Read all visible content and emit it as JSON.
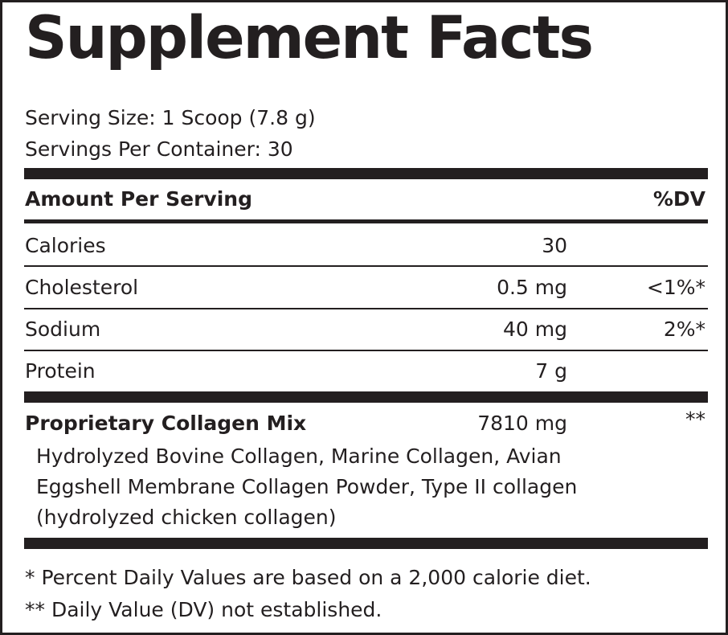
{
  "title": "Supplement Facts",
  "serving_size": "Serving Size: 1 Scoop (7.8 g)",
  "servings_per_container": "Servings Per Container: 30",
  "header": {
    "amount_label": "Amount Per Serving",
    "dv_label": "%DV"
  },
  "nutrients": [
    {
      "name": "Calories",
      "amount": "30",
      "dv": ""
    },
    {
      "name": "Cholesterol",
      "amount": "0.5 mg",
      "dv": "<1%*"
    },
    {
      "name": "Sodium",
      "amount": "40 mg",
      "dv": "2%*"
    },
    {
      "name": "Protein",
      "amount": "7 g",
      "dv": ""
    }
  ],
  "blend": {
    "name": "Proprietary Collagen Mix",
    "amount": "7810 mg",
    "dv": "**",
    "ingredients_lines": [
      "Hydrolyzed Bovine Collagen, Marine Collagen, Avian",
      "Eggshell Membrane Collagen Powder, Type II collagen",
      "(hydrolyzed chicken collagen)"
    ]
  },
  "footnotes": [
    "* Percent Daily Values are based on a 2,000 calorie diet.",
    "** Daily Value (DV) not established."
  ]
}
